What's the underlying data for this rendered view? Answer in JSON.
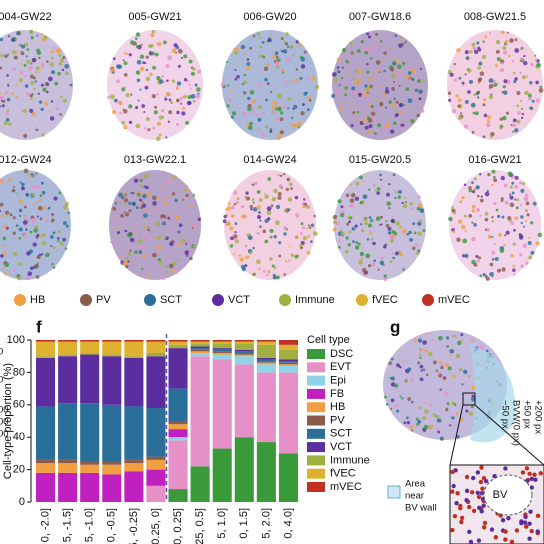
{
  "top_row": [
    "004-GW22",
    "005-GW21",
    "006-GW20",
    "007-GW18.6",
    "008-GW21.5"
  ],
  "second_row": [
    "012-GW24",
    "013-GW22.1",
    "014-GW24",
    "015-GW20.5",
    "016-GW21"
  ],
  "cell_legend": [
    {
      "name": "HB",
      "color": "#f0a040"
    },
    {
      "name": "PV",
      "color": "#8b5a4a"
    },
    {
      "name": "SCT",
      "color": "#2a6e9a"
    },
    {
      "name": "VCT",
      "color": "#5b2d9e"
    },
    {
      "name": "Immune",
      "color": "#a0b040"
    },
    {
      "name": "fVEC",
      "color": "#e0b030"
    },
    {
      "name": "mVEC",
      "color": "#c03020"
    }
  ],
  "left_fragments": [
    "0",
    "0",
    "00",
    "00",
    "00"
  ],
  "panel_f": {
    "label": "f"
  },
  "chart_data": {
    "type": "bar",
    "stacked": true,
    "y_label": "Cell-type proportion (%)",
    "legend_title": "Cell type",
    "categories": [
      "0, -2.0]",
      "5, -1.5]",
      "5, -1.0]",
      "0, -0.5]",
      "5, -0.25]",
      "0.25, 0]",
      "0, 0.25]",
      "25, 0.5]",
      "5, 1.0]",
      "0, 1.5]",
      "5, 2.0]",
      "0, 4.0]"
    ],
    "ylim": [
      0,
      100
    ],
    "yticks": [
      0,
      20,
      40,
      60,
      80,
      100
    ],
    "series": [
      {
        "name": "DSC",
        "color": "#3a9a3a",
        "values": [
          0,
          0,
          0,
          0,
          0,
          0,
          8,
          22,
          33,
          40,
          37,
          30
        ]
      },
      {
        "name": "EVT",
        "color": "#e690c8",
        "values": [
          0,
          0,
          0,
          0,
          0,
          10,
          30,
          68,
          55,
          45,
          43,
          50
        ]
      },
      {
        "name": "Epi",
        "color": "#8fd3e8",
        "values": [
          0,
          0,
          0,
          0,
          0,
          0,
          2,
          2,
          3,
          5,
          5,
          4
        ]
      },
      {
        "name": "FB",
        "color": "#c020c0",
        "values": [
          18,
          18,
          18,
          17,
          19,
          10,
          5,
          0,
          0,
          0,
          0,
          0
        ]
      },
      {
        "name": "HB",
        "color": "#f0a040",
        "values": [
          6,
          6,
          5,
          6,
          5,
          6,
          3,
          1,
          1,
          1,
          1,
          1
        ]
      },
      {
        "name": "PV",
        "color": "#8b5a4a",
        "values": [
          2,
          2,
          2,
          2,
          2,
          2,
          2,
          1,
          1,
          1,
          1,
          1
        ]
      },
      {
        "name": "SCT",
        "color": "#2a6e9a",
        "values": [
          33,
          35,
          36,
          35,
          33,
          30,
          20,
          1,
          1,
          1,
          1,
          1
        ]
      },
      {
        "name": "VCT",
        "color": "#5b2d9e",
        "values": [
          30,
          29,
          30,
          30,
          30,
          32,
          25,
          1,
          1,
          1,
          1,
          1
        ]
      },
      {
        "name": "Immune",
        "color": "#a0b040",
        "values": [
          1,
          1,
          1,
          1,
          1,
          2,
          2,
          2,
          3,
          4,
          8,
          6
        ]
      },
      {
        "name": "fVEC",
        "color": "#e0b030",
        "values": [
          9,
          8,
          7,
          8,
          9,
          7,
          2,
          1,
          1,
          1,
          2,
          3
        ]
      },
      {
        "name": "mVEC",
        "color": "#c03020",
        "values": [
          1,
          1,
          1,
          1,
          1,
          1,
          1,
          1,
          1,
          1,
          1,
          3
        ]
      }
    ]
  },
  "panel_g": {
    "label": "g",
    "bv": "BV",
    "legend": [
      "Area",
      "near",
      "BV wall"
    ],
    "offsets": [
      "+200 px",
      "+50 px",
      "BVW(0 px)",
      "−50 px"
    ]
  }
}
